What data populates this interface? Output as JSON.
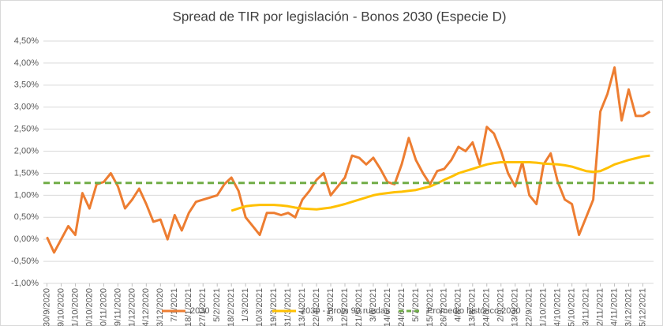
{
  "chart_data": {
    "type": "line",
    "title": "Spread de TIR por legislación - Bonos 2030 (Especie D)",
    "categories": [
      "30/9/2020",
      null,
      "9/10/2020",
      null,
      "21/10/2020",
      null,
      "30/10/2020",
      null,
      "10/11/2020",
      null,
      "19/11/2020",
      null,
      "1/12/2020",
      null,
      "14/12/2020",
      null,
      "23/12/2020",
      null,
      "7/1/2021",
      null,
      "18/1/2021",
      null,
      "27/1/2021",
      null,
      "5/2/2021",
      null,
      "18/2/2021",
      null,
      "1/3/2021",
      null,
      "10/3/2021",
      null,
      "19/3/2021",
      null,
      "31/3/2021",
      null,
      "13/4/2021",
      null,
      "22/4/2021",
      null,
      "3/5/2021",
      null,
      "12/5/2021",
      null,
      "21/5/2021",
      null,
      "3/6/2021",
      null,
      "14/6/2021",
      null,
      "24/6/2021",
      null,
      "5/7/2021",
      null,
      "15/7/2021",
      null,
      "26/7/2021",
      null,
      "4/8/2021",
      null,
      "13/8/2021",
      null,
      "24/8/2021",
      null,
      "2/9/2021",
      null,
      "13/9/2021",
      null,
      "22/9/2021",
      null,
      "1/10/2021",
      null,
      "14/10/2021",
      null,
      "25/10/2021",
      null,
      "3/11/2021",
      null,
      "12/11/2021",
      null,
      "24/11/2021",
      null,
      "3/12/2021",
      null,
      "15/12/2021",
      null
    ],
    "series": [
      {
        "name": "2030",
        "color": "#ed7d31",
        "width": 3,
        "values": [
          0.05,
          -0.3,
          0.0,
          0.3,
          0.1,
          1.05,
          0.7,
          1.25,
          1.3,
          1.5,
          1.2,
          0.7,
          0.9,
          1.15,
          0.8,
          0.4,
          0.45,
          0.0,
          0.55,
          0.2,
          0.6,
          0.85,
          0.9,
          0.95,
          1.0,
          1.25,
          1.4,
          1.1,
          0.5,
          0.3,
          0.1,
          0.6,
          0.6,
          0.55,
          0.6,
          0.5,
          0.9,
          1.1,
          1.35,
          1.5,
          1.0,
          1.2,
          1.4,
          1.9,
          1.85,
          1.7,
          1.85,
          1.6,
          1.3,
          1.25,
          1.7,
          2.3,
          1.8,
          1.5,
          1.25,
          1.55,
          1.6,
          1.8,
          2.1,
          2.0,
          2.2,
          1.7,
          2.55,
          2.4,
          2.0,
          1.5,
          1.2,
          1.75,
          1.0,
          0.8,
          1.7,
          1.95,
          1.3,
          0.9,
          0.8,
          0.1,
          0.5,
          0.9,
          2.9,
          3.3,
          3.9,
          2.7,
          3.4,
          2.8,
          2.8,
          2.9
        ]
      },
      {
        "name": "2030 - Prom 90 ruedas",
        "color": "#ffc000",
        "width": 3,
        "values": [
          null,
          null,
          null,
          null,
          null,
          null,
          null,
          null,
          null,
          null,
          null,
          null,
          null,
          null,
          null,
          null,
          null,
          null,
          null,
          null,
          null,
          null,
          null,
          null,
          null,
          null,
          0.65,
          0.7,
          0.75,
          0.77,
          0.78,
          0.78,
          0.78,
          0.77,
          0.75,
          0.72,
          0.7,
          0.69,
          0.68,
          0.7,
          0.72,
          0.76,
          0.8,
          0.85,
          0.9,
          0.95,
          1.0,
          1.03,
          1.05,
          1.07,
          1.08,
          1.1,
          1.12,
          1.16,
          1.2,
          1.27,
          1.35,
          1.42,
          1.5,
          1.55,
          1.6,
          1.65,
          1.7,
          1.73,
          1.75,
          1.75,
          1.75,
          1.75,
          1.75,
          1.74,
          1.72,
          1.71,
          1.7,
          1.68,
          1.65,
          1.6,
          1.55,
          1.53,
          1.55,
          1.62,
          1.7,
          1.75,
          1.8,
          1.84,
          1.88,
          1.9
        ]
      },
      {
        "name": "Promedio histórico 2030",
        "color": "#70ad47",
        "width": 3,
        "dashed": true,
        "value": 1.28
      }
    ],
    "ylim": [
      -1,
      4.5
    ],
    "yticks": [
      {
        "value": -1,
        "label": "-1,00%"
      },
      {
        "value": -0.5,
        "label": "-0,50%"
      },
      {
        "value": 0,
        "label": "0,00%"
      },
      {
        "value": 0.5,
        "label": "0,50%"
      },
      {
        "value": 1,
        "label": "1,00%"
      },
      {
        "value": 1.5,
        "label": "1,50%"
      },
      {
        "value": 2,
        "label": "2,00%"
      },
      {
        "value": 2.5,
        "label": "2,50%"
      },
      {
        "value": 3,
        "label": "3,00%"
      },
      {
        "value": 3.5,
        "label": "3,50%"
      },
      {
        "value": 4,
        "label": "4,00%"
      },
      {
        "value": 4.5,
        "label": "4,50%"
      }
    ],
    "grid": true,
    "legend": "bottom"
  }
}
